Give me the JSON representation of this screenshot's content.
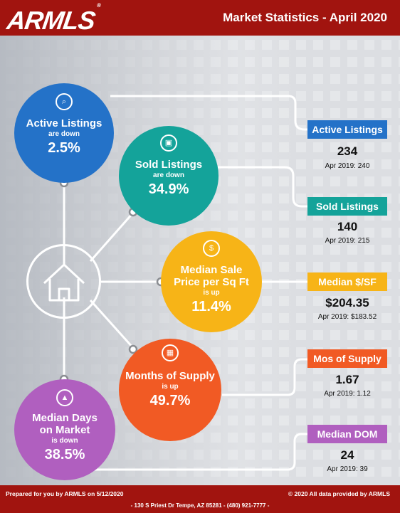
{
  "header": {
    "logo": "ARMLS",
    "logo_mark": "®",
    "title": "Market Statistics - April 2020"
  },
  "colors": {
    "brand_red": "#a1140f",
    "blue": "#2472c8",
    "teal": "#14a39a",
    "yellow": "#f7b417",
    "orange": "#f15a24",
    "purple": "#b05fbf"
  },
  "circles": {
    "active": {
      "icon": "house-search-icon",
      "title": "Active Listings",
      "direction": "are down",
      "value": "2.5%"
    },
    "sold": {
      "icon": "sold-sign-icon",
      "title": "Sold Listings",
      "direction": "are down",
      "value": "34.9%"
    },
    "price": {
      "icon": "house-dollar-icon",
      "title_line1": "Median Sale",
      "title_line2": "Price per Sq Ft",
      "direction": "is up",
      "value": "11.4%"
    },
    "supply": {
      "icon": "calendar-icon",
      "title": "Months of Supply",
      "direction": "is up",
      "value": "49.7%"
    },
    "dom": {
      "icon": "chart-icon",
      "title_line1": "Median Days",
      "title_line2": "on Market",
      "direction": "is down",
      "value": "38.5%"
    }
  },
  "stats": {
    "active": {
      "label": "Active Listings",
      "value": "234",
      "previous": "Apr 2019: 240"
    },
    "sold": {
      "label": "Sold Listings",
      "value": "140",
      "previous": "Apr 2019: 215"
    },
    "price": {
      "label": "Median $/SF",
      "value": "$204.35",
      "previous": "Apr 2019: $183.52"
    },
    "supply": {
      "label": "Mos of Supply",
      "value": "1.67",
      "previous": "Apr 2019: 1.12"
    },
    "dom": {
      "label": "Median DOM",
      "value": "24",
      "previous": "Apr 2019: 39"
    }
  },
  "footer": {
    "prepared": "Prepared for you by ARMLS on 5/12/2020",
    "copyright": "© 2020 All data provided by ARMLS",
    "address": "- 130 S Priest Dr   Tempe, AZ 85281 - (480) 921-7777 -"
  }
}
